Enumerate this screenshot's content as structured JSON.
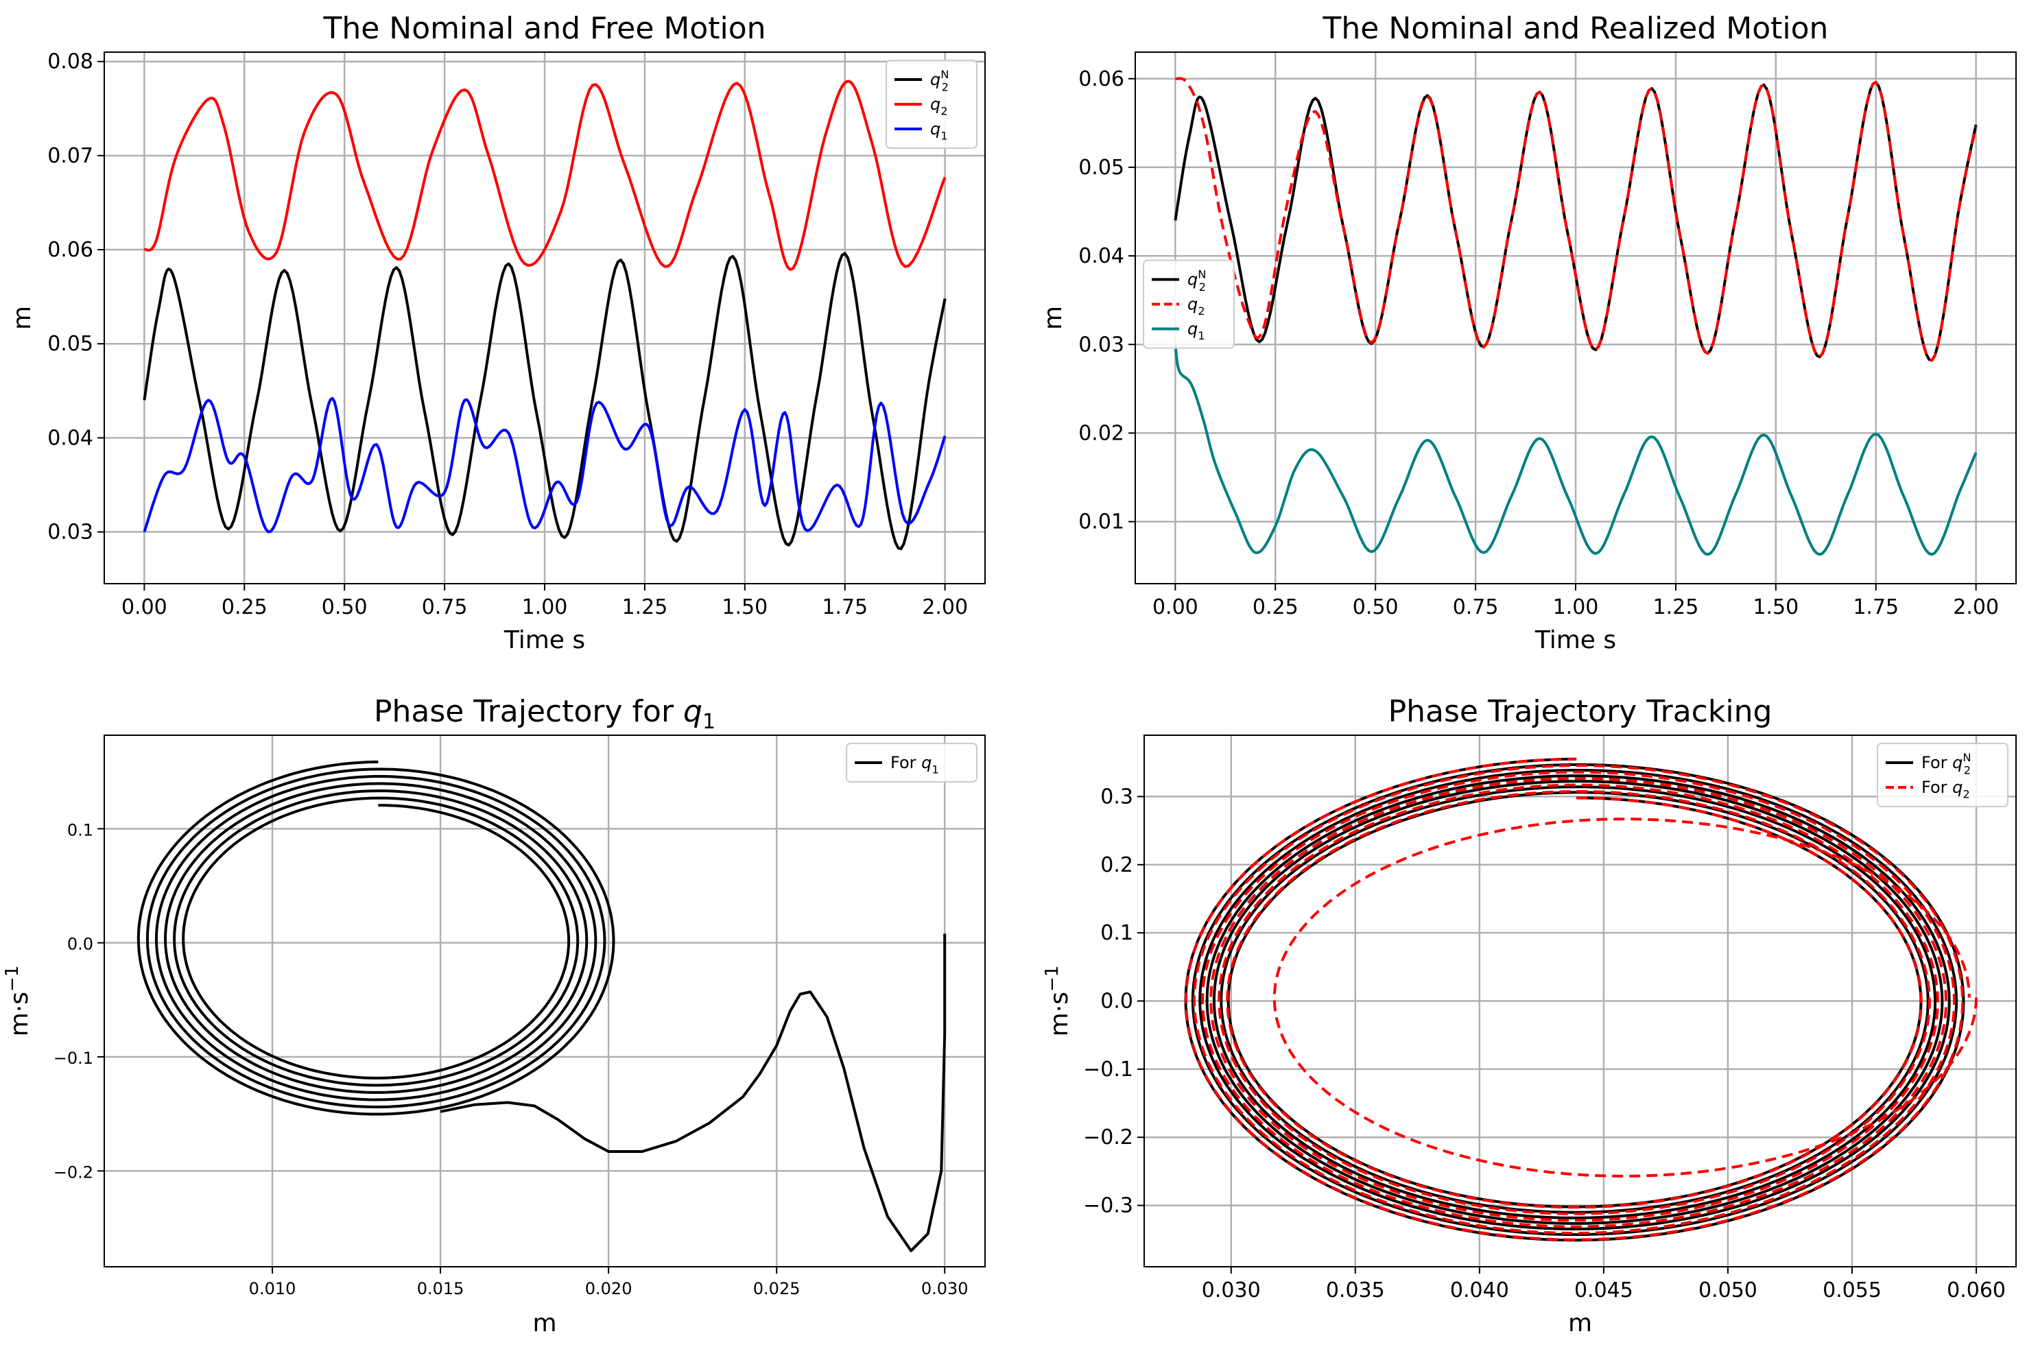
{
  "chart_data": [
    {
      "type": "line",
      "title": "The Nominal and Free Motion",
      "xlabel": "Time s",
      "ylabel": "m",
      "xlim": [
        -0.1,
        2.1
      ],
      "ylim": [
        0.0245,
        0.081
      ],
      "xticks": [
        "0.00",
        "0.25",
        "0.50",
        "0.75",
        "1.00",
        "1.25",
        "1.50",
        "1.75",
        "2.00"
      ],
      "yticks": [
        "0.03",
        "0.04",
        "0.05",
        "0.06",
        "0.07",
        "0.08"
      ],
      "grid": true,
      "legend_position": "top-right",
      "series": [
        {
          "name": "q2^N",
          "legend": {
            "base": "q",
            "sub": "2",
            "sup": "N"
          },
          "color": "#000000",
          "style": "solid",
          "x": [
            0.0,
            0.035,
            0.07,
            0.14,
            0.21,
            0.28,
            0.35,
            0.42,
            0.49,
            0.56,
            0.63,
            0.7,
            0.77,
            0.84,
            0.91,
            0.98,
            1.05,
            1.12,
            1.19,
            1.26,
            1.33,
            1.4,
            1.47,
            1.54,
            1.61,
            1.68,
            1.75,
            1.82,
            1.89,
            1.96,
            2.0
          ],
          "y": [
            0.044,
            0.0535,
            0.0575,
            0.0434,
            0.0303,
            0.0437,
            0.0578,
            0.0432,
            0.0301,
            0.0439,
            0.0581,
            0.0428,
            0.0297,
            0.0441,
            0.0585,
            0.0426,
            0.0294,
            0.0442,
            0.0589,
            0.0425,
            0.029,
            0.0444,
            0.0593,
            0.0423,
            0.0286,
            0.0446,
            0.0596,
            0.0421,
            0.0282,
            0.046,
            0.0548
          ]
        },
        {
          "name": "q2",
          "legend": {
            "base": "q",
            "sub": "2",
            "sup": ""
          },
          "color": "#ff0000",
          "style": "solid",
          "x": [
            0.0,
            0.03,
            0.08,
            0.16,
            0.2,
            0.26,
            0.33,
            0.4,
            0.48,
            0.55,
            0.64,
            0.72,
            0.8,
            0.86,
            0.95,
            1.04,
            1.12,
            1.2,
            1.3,
            1.38,
            1.48,
            1.56,
            1.62,
            1.7,
            1.76,
            1.82,
            1.9,
            2.0
          ],
          "y": [
            0.06,
            0.061,
            0.07,
            0.076,
            0.073,
            0.062,
            0.0597,
            0.0725,
            0.0765,
            0.067,
            0.059,
            0.0705,
            0.077,
            0.07,
            0.0585,
            0.064,
            0.0775,
            0.069,
            0.0582,
            0.0665,
            0.0777,
            0.066,
            0.058,
            0.072,
            0.0779,
            0.071,
            0.0582,
            0.0677
          ]
        },
        {
          "name": "q1",
          "legend": {
            "base": "q",
            "sub": "1",
            "sup": ""
          },
          "color": "#0000ff",
          "style": "solid",
          "x": [
            0.0,
            0.05,
            0.1,
            0.16,
            0.21,
            0.25,
            0.31,
            0.37,
            0.42,
            0.47,
            0.52,
            0.58,
            0.63,
            0.68,
            0.75,
            0.8,
            0.85,
            0.91,
            0.97,
            1.03,
            1.08,
            1.13,
            1.2,
            1.26,
            1.31,
            1.36,
            1.43,
            1.5,
            1.55,
            1.6,
            1.65,
            1.73,
            1.79,
            1.84,
            1.9,
            1.96,
            2.0
          ],
          "y": [
            0.03,
            0.036,
            0.0367,
            0.044,
            0.0375,
            0.038,
            0.03,
            0.036,
            0.0355,
            0.0442,
            0.0335,
            0.0393,
            0.0305,
            0.0352,
            0.0342,
            0.044,
            0.039,
            0.0405,
            0.0305,
            0.0353,
            0.0332,
            0.0437,
            0.0388,
            0.0412,
            0.0308,
            0.0348,
            0.0322,
            0.043,
            0.0328,
            0.0427,
            0.0303,
            0.035,
            0.0308,
            0.0437,
            0.0312,
            0.0352,
            0.0402
          ]
        }
      ]
    },
    {
      "type": "line",
      "title": "The Nominal and Realized Motion",
      "xlabel": "Time s",
      "ylabel": "m",
      "xlim": [
        -0.1,
        2.1
      ],
      "ylim": [
        0.003,
        0.063
      ],
      "xticks": [
        "0.00",
        "0.25",
        "0.50",
        "0.75",
        "1.00",
        "1.25",
        "1.50",
        "1.75",
        "2.00"
      ],
      "yticks": [
        "0.01",
        "0.02",
        "0.03",
        "0.04",
        "0.05",
        "0.06"
      ],
      "grid": true,
      "legend_position": "center-left",
      "series": [
        {
          "name": "q2^N",
          "legend": {
            "base": "q",
            "sub": "2",
            "sup": "N"
          },
          "color": "#000000",
          "style": "solid",
          "x": [
            0.0,
            0.035,
            0.07,
            0.14,
            0.21,
            0.28,
            0.35,
            0.42,
            0.49,
            0.56,
            0.63,
            0.7,
            0.77,
            0.84,
            0.91,
            0.98,
            1.05,
            1.12,
            1.19,
            1.26,
            1.33,
            1.4,
            1.47,
            1.54,
            1.61,
            1.68,
            1.75,
            1.82,
            1.89,
            1.96,
            2.0
          ],
          "y": [
            0.044,
            0.0535,
            0.0575,
            0.0434,
            0.0303,
            0.0437,
            0.0578,
            0.0432,
            0.0301,
            0.0439,
            0.0581,
            0.0428,
            0.0297,
            0.0441,
            0.0585,
            0.0426,
            0.0294,
            0.0442,
            0.0589,
            0.0425,
            0.029,
            0.0444,
            0.0593,
            0.0423,
            0.0286,
            0.0446,
            0.0596,
            0.0421,
            0.0282,
            0.046,
            0.0548
          ]
        },
        {
          "name": "q2",
          "legend": {
            "base": "q",
            "sub": "2",
            "sup": ""
          },
          "color": "#ff0000",
          "style": "dashed",
          "x": [
            0.0,
            0.03,
            0.07,
            0.12,
            0.18,
            0.22,
            0.28,
            0.35,
            0.42,
            0.49,
            0.56,
            0.63,
            0.7,
            0.77,
            0.84,
            0.91,
            0.98,
            1.05,
            1.12,
            1.19,
            1.26,
            1.33,
            1.4,
            1.47,
            1.54,
            1.61,
            1.68,
            1.75,
            1.82,
            1.89,
            1.96,
            2.0
          ],
          "y": [
            0.06,
            0.0595,
            0.055,
            0.043,
            0.033,
            0.0318,
            0.046,
            0.0563,
            0.0432,
            0.0302,
            0.0439,
            0.058,
            0.0428,
            0.0297,
            0.0441,
            0.0585,
            0.0426,
            0.0294,
            0.0442,
            0.0589,
            0.0425,
            0.029,
            0.0444,
            0.0593,
            0.0423,
            0.0286,
            0.0446,
            0.0596,
            0.0421,
            0.0282,
            0.046,
            0.0546
          ]
        },
        {
          "name": "q1",
          "legend": {
            "base": "q",
            "sub": "1",
            "sup": ""
          },
          "color": "#008080",
          "style": "solid",
          "x": [
            0.0,
            0.01,
            0.04,
            0.07,
            0.1,
            0.15,
            0.2,
            0.25,
            0.3,
            0.35,
            0.42,
            0.49,
            0.56,
            0.63,
            0.7,
            0.77,
            0.84,
            0.91,
            0.98,
            1.05,
            1.12,
            1.19,
            1.26,
            1.33,
            1.4,
            1.47,
            1.54,
            1.61,
            1.68,
            1.75,
            1.82,
            1.89,
            1.96,
            2.0
          ],
          "y": [
            0.03,
            0.027,
            0.0255,
            0.0215,
            0.0165,
            0.011,
            0.0065,
            0.0095,
            0.016,
            0.018,
            0.0128,
            0.0066,
            0.0128,
            0.0192,
            0.0128,
            0.0065,
            0.0129,
            0.0194,
            0.0128,
            0.0064,
            0.013,
            0.0196,
            0.0128,
            0.0063,
            0.0131,
            0.0198,
            0.0128,
            0.0063,
            0.0131,
            0.0199,
            0.0128,
            0.0063,
            0.0135,
            0.0178
          ]
        }
      ]
    },
    {
      "type": "line",
      "title": "Phase Trajectory for",
      "title_math": {
        "base": "q",
        "sub": "1"
      },
      "xlabel": "m",
      "ylabel": "m·s",
      "ylabel_sup": "−1",
      "xlim": [
        0.005,
        0.0312
      ],
      "ylim": [
        -0.284,
        0.182
      ],
      "xticks": [
        "0.010",
        "0.015",
        "0.020",
        "0.025",
        "0.030"
      ],
      "yticks": [
        "−0.2",
        "−0.1",
        "0.0",
        "0.1"
      ],
      "grid": true,
      "legend_position": "top-right",
      "series": [
        {
          "name": "For q1",
          "legend": {
            "prefix": "For ",
            "base": "q",
            "sub": "1",
            "sup": ""
          },
          "color": "#000000",
          "style": "solid",
          "parametric": {
            "kind": "q1_phase",
            "cx": 0.01315,
            "cy": 0.0026,
            "ax0": 0.0056,
            "ax1": 0.0072,
            "ay0": 0.118,
            "ay1": 0.156,
            "turns": 6
          },
          "transient_x": [
            0.03,
            0.03,
            0.0299,
            0.0295,
            0.029,
            0.0283,
            0.0276,
            0.027,
            0.0265,
            0.026,
            0.0257,
            0.0254,
            0.025,
            0.0245,
            0.024,
            0.023,
            0.022,
            0.021,
            0.02,
            0.0193,
            0.0185,
            0.0178,
            0.017,
            0.016,
            0.015
          ],
          "transient_y": [
            0.008,
            -0.08,
            -0.2,
            -0.255,
            -0.27,
            -0.24,
            -0.18,
            -0.11,
            -0.065,
            -0.043,
            -0.045,
            -0.06,
            -0.09,
            -0.115,
            -0.135,
            -0.158,
            -0.174,
            -0.183,
            -0.183,
            -0.172,
            -0.155,
            -0.143,
            -0.14,
            -0.142,
            -0.148
          ]
        }
      ]
    },
    {
      "type": "line",
      "title": "Phase Trajectory Tracking",
      "xlabel": "m",
      "ylabel": "m·s",
      "ylabel_sup": "−1",
      "xlim": [
        0.0265,
        0.0616
      ],
      "ylim": [
        -0.39,
        0.39
      ],
      "xticks": [
        "0.030",
        "0.035",
        "0.040",
        "0.045",
        "0.050",
        "0.055",
        "0.060"
      ],
      "yticks": [
        "−0.3",
        "−0.2",
        "−0.1",
        "0.0",
        "0.1",
        "0.2",
        "0.3"
      ],
      "grid": true,
      "legend_position": "top-right",
      "series": [
        {
          "name": "For q2^N",
          "legend": {
            "prefix": "For ",
            "base": "q",
            "sub": "2",
            "sup": "N"
          },
          "color": "#000000",
          "style": "solid",
          "parametric": {
            "kind": "spiral",
            "cx": 0.0439,
            "cy": 0.0,
            "ax0": 0.0138,
            "ax1": 0.0158,
            "ay0": 0.298,
            "ay1": 0.355,
            "turns": 7
          }
        },
        {
          "name": "For q2",
          "legend": {
            "prefix": "For ",
            "base": "q",
            "sub": "2",
            "sup": ""
          },
          "color": "#ff0000",
          "style": "dashed",
          "parametric": {
            "kind": "spiral",
            "cx": 0.0439,
            "cy": 0.0,
            "ax0": 0.0138,
            "ax1": 0.0158,
            "ay0": 0.298,
            "ay1": 0.355,
            "turns": 6
          },
          "transient": {
            "cx": 0.0458,
            "cy": 0.005,
            "ax": 0.0142,
            "ay": 0.262,
            "sweep": 1.0
          }
        }
      ]
    }
  ]
}
